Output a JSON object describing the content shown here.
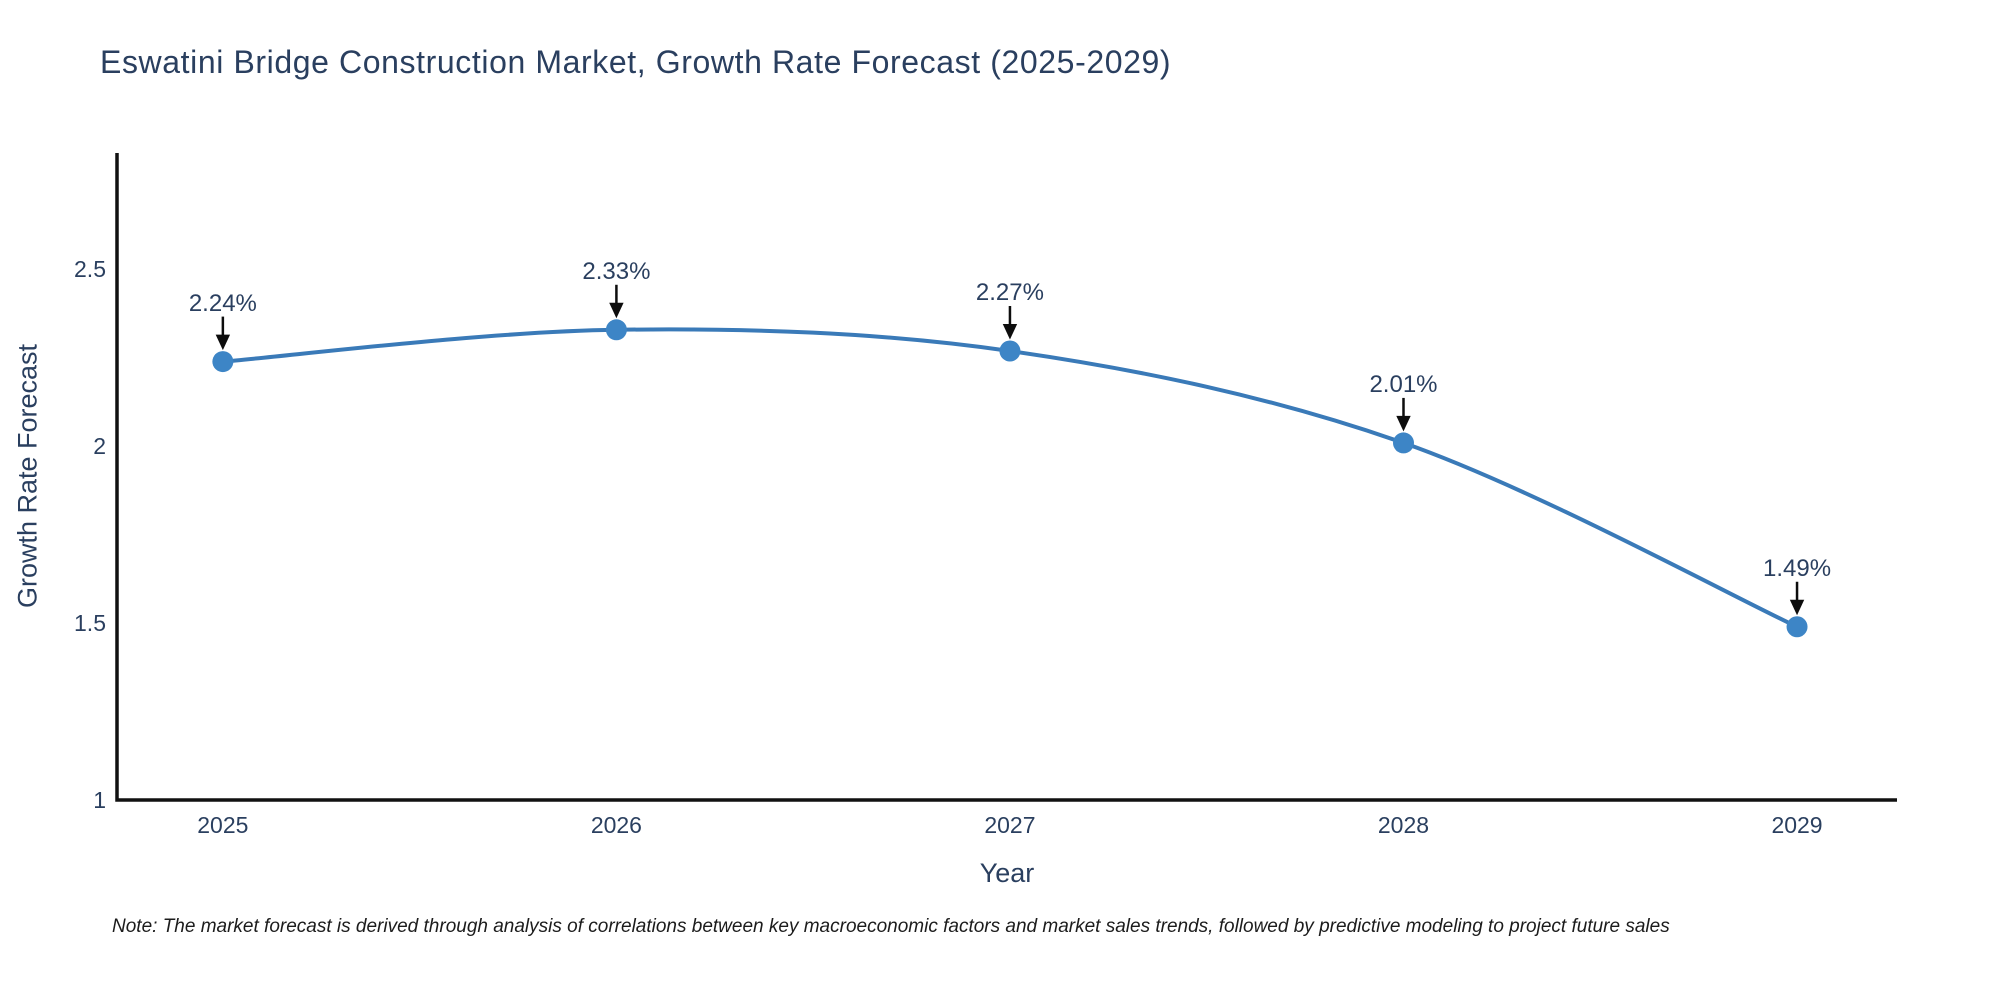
{
  "title": "Eswatini Bridge Construction Market, Growth Rate Forecast (2025-2029)",
  "note": "Note: The market forecast is derived through analysis of correlations between key macroeconomic factors and market sales trends, followed by predictive modeling to project future sales",
  "colors": {
    "text": "#2a3f5f",
    "line": "#3a7ab8",
    "marker": "#3d85c6",
    "axis": "#111111",
    "arrow": "#0d0d0d",
    "background": "#ffffff"
  },
  "chart_data": {
    "type": "line",
    "title": "Eswatini Bridge Construction Market, Growth Rate Forecast (2025-2029)",
    "xlabel": "Year",
    "ylabel": "Growth Rate Forecast",
    "categories": [
      2025,
      2026,
      2027,
      2028,
      2029
    ],
    "values": [
      2.24,
      2.33,
      2.27,
      2.01,
      1.49
    ],
    "point_labels": [
      "2.24%",
      "2.33%",
      "2.27%",
      "2.01%",
      "1.49%"
    ],
    "x_ticks": [
      "2025",
      "2026",
      "2027",
      "2028",
      "2029"
    ],
    "y_ticks": [
      "1",
      "1.5",
      "2",
      "2.5"
    ],
    "y_tick_values": [
      1,
      1.5,
      2,
      2.5
    ],
    "xlim": [
      2024.731,
      2029.254
    ],
    "ylim": [
      1,
      2.83
    ],
    "line_shape": "spline",
    "markers": true,
    "grid": false,
    "legend": "none",
    "annotation_style": "value label with downward arrow above each point"
  }
}
